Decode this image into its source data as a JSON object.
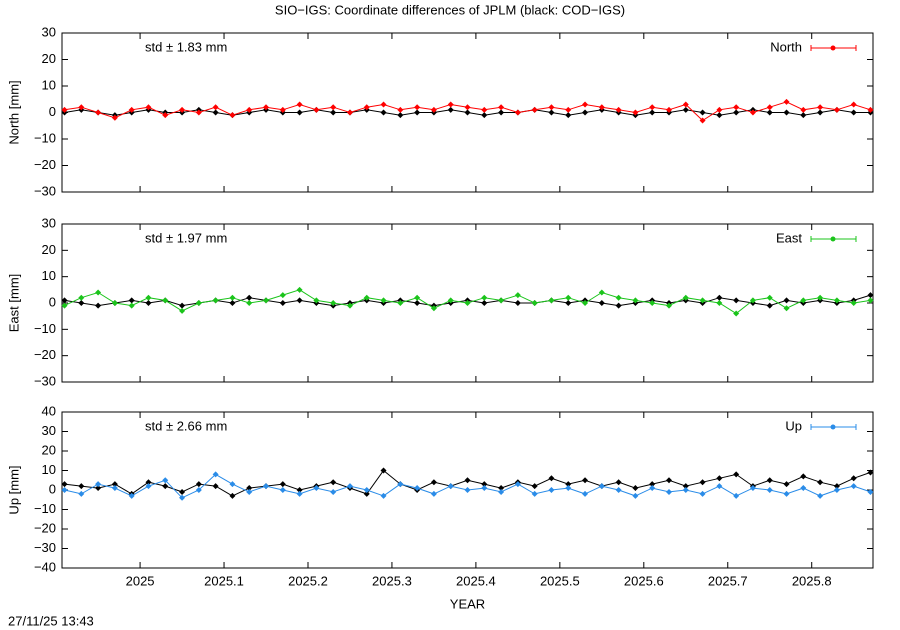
{
  "title": "SIO−IGS: Coordinate differences of JPLM (black: COD−IGS)",
  "timestamp": "27/11/25 13:43",
  "chart_data": [
    {
      "type": "line",
      "ylabel": "North [mm]",
      "annotation": "std ± 1.83 mm",
      "xlim": [
        2024.907,
        2025.873
      ],
      "xticks": [
        2025,
        2025.1,
        2025.2,
        2025.3,
        2025.4,
        2025.5,
        2025.6,
        2025.7,
        2025.8
      ],
      "ylim": [
        -30,
        30
      ],
      "yticks": [
        {
          "value": -30,
          "label": "−30"
        },
        {
          "value": -20,
          "label": "−20"
        },
        {
          "value": -10,
          "label": "−10"
        },
        0,
        10,
        20,
        30
      ],
      "x": [
        2024.91,
        2024.93,
        2024.95,
        2024.97,
        2024.99,
        2025.01,
        2025.03,
        2025.05,
        2025.07,
        2025.09,
        2025.11,
        2025.13,
        2025.15,
        2025.17,
        2025.19,
        2025.21,
        2025.23,
        2025.25,
        2025.27,
        2025.29,
        2025.31,
        2025.33,
        2025.35,
        2025.37,
        2025.39,
        2025.41,
        2025.43,
        2025.45,
        2025.47,
        2025.49,
        2025.51,
        2025.53,
        2025.55,
        2025.57,
        2025.59,
        2025.61,
        2025.63,
        2025.65,
        2025.67,
        2025.69,
        2025.71,
        2025.73,
        2025.75,
        2025.77,
        2025.79,
        2025.81,
        2025.83,
        2025.85,
        2025.87
      ],
      "series": [
        {
          "color": "#000000",
          "values": [
            0,
            1,
            0,
            -1,
            0,
            1,
            0,
            0,
            1,
            0,
            -1,
            0,
            1,
            0,
            0,
            1,
            0,
            0,
            1,
            0,
            -1,
            0,
            0,
            1,
            0,
            -1,
            0,
            0,
            1,
            0,
            -1,
            0,
            1,
            0,
            -1,
            0,
            0,
            1,
            0,
            -1,
            0,
            1,
            0,
            0,
            -1,
            0,
            1,
            0,
            0
          ]
        },
        {
          "name": "North",
          "color": "#ff0000",
          "values": [
            1,
            2,
            0,
            -2,
            1,
            2,
            -1,
            1,
            0,
            2,
            -1,
            1,
            2,
            1,
            3,
            1,
            2,
            0,
            2,
            3,
            1,
            2,
            1,
            3,
            2,
            1,
            2,
            0,
            1,
            2,
            1,
            3,
            2,
            1,
            0,
            2,
            1,
            3,
            -3,
            1,
            2,
            0,
            2,
            4,
            1,
            2,
            1,
            3,
            1
          ]
        }
      ]
    },
    {
      "type": "line",
      "ylabel": "East [mm]",
      "annotation": "std ± 1.97 mm",
      "xlim": [
        2024.907,
        2025.873
      ],
      "xticks": [
        2025,
        2025.1,
        2025.2,
        2025.3,
        2025.4,
        2025.5,
        2025.6,
        2025.7,
        2025.8
      ],
      "ylim": [
        -30,
        30
      ],
      "yticks": [
        {
          "value": -30,
          "label": "−30"
        },
        {
          "value": -20,
          "label": "−20"
        },
        {
          "value": -10,
          "label": "−10"
        },
        0,
        10,
        20,
        30
      ],
      "x": [
        2024.91,
        2024.93,
        2024.95,
        2024.97,
        2024.99,
        2025.01,
        2025.03,
        2025.05,
        2025.07,
        2025.09,
        2025.11,
        2025.13,
        2025.15,
        2025.17,
        2025.19,
        2025.21,
        2025.23,
        2025.25,
        2025.27,
        2025.29,
        2025.31,
        2025.33,
        2025.35,
        2025.37,
        2025.39,
        2025.41,
        2025.43,
        2025.45,
        2025.47,
        2025.49,
        2025.51,
        2025.53,
        2025.55,
        2025.57,
        2025.59,
        2025.61,
        2025.63,
        2025.65,
        2025.67,
        2025.69,
        2025.71,
        2025.73,
        2025.75,
        2025.77,
        2025.79,
        2025.81,
        2025.83,
        2025.85,
        2025.87
      ],
      "series": [
        {
          "color": "#000000",
          "values": [
            1,
            0,
            -1,
            0,
            1,
            0,
            1,
            -1,
            0,
            1,
            0,
            2,
            1,
            0,
            1,
            0,
            -1,
            0,
            1,
            0,
            1,
            0,
            -1,
            0,
            1,
            0,
            1,
            0,
            0,
            1,
            0,
            1,
            0,
            -1,
            0,
            1,
            0,
            1,
            0,
            2,
            1,
            0,
            -1,
            1,
            0,
            1,
            0,
            1,
            3
          ]
        },
        {
          "name": "East",
          "color": "#1bc41b",
          "values": [
            -1,
            2,
            4,
            0,
            -1,
            2,
            1,
            -3,
            0,
            1,
            2,
            0,
            1,
            3,
            5,
            1,
            0,
            -1,
            2,
            1,
            0,
            2,
            -2,
            1,
            0,
            2,
            1,
            3,
            0,
            1,
            2,
            0,
            4,
            2,
            1,
            0,
            -1,
            2,
            1,
            0,
            -4,
            1,
            2,
            -2,
            1,
            2,
            1,
            0,
            1
          ]
        }
      ]
    },
    {
      "type": "line",
      "ylabel": "Up [mm]",
      "annotation": "std ± 2.66 mm",
      "xlabel": "YEAR",
      "xlim": [
        2024.907,
        2025.873
      ],
      "xticks": [
        2025,
        2025.1,
        2025.2,
        2025.3,
        2025.4,
        2025.5,
        2025.6,
        2025.7,
        2025.8
      ],
      "ylim": [
        -40,
        40
      ],
      "yticks": [
        {
          "value": -40,
          "label": "−40"
        },
        {
          "value": -30,
          "label": "−30"
        },
        {
          "value": -20,
          "label": "−20"
        },
        {
          "value": -10,
          "label": "−10"
        },
        0,
        10,
        20,
        30,
        40
      ],
      "x": [
        2024.91,
        2024.93,
        2024.95,
        2024.97,
        2024.99,
        2025.01,
        2025.03,
        2025.05,
        2025.07,
        2025.09,
        2025.11,
        2025.13,
        2025.15,
        2025.17,
        2025.19,
        2025.21,
        2025.23,
        2025.25,
        2025.27,
        2025.29,
        2025.31,
        2025.33,
        2025.35,
        2025.37,
        2025.39,
        2025.41,
        2025.43,
        2025.45,
        2025.47,
        2025.49,
        2025.51,
        2025.53,
        2025.55,
        2025.57,
        2025.59,
        2025.61,
        2025.63,
        2025.65,
        2025.67,
        2025.69,
        2025.71,
        2025.73,
        2025.75,
        2025.77,
        2025.79,
        2025.81,
        2025.83,
        2025.85,
        2025.87
      ],
      "series": [
        {
          "color": "#000000",
          "values": [
            3,
            2,
            1,
            3,
            -2,
            4,
            2,
            -1,
            3,
            2,
            -3,
            1,
            2,
            3,
            0,
            2,
            4,
            1,
            -2,
            10,
            3,
            0,
            4,
            2,
            5,
            3,
            1,
            4,
            2,
            6,
            3,
            5,
            2,
            4,
            1,
            3,
            5,
            2,
            4,
            6,
            8,
            2,
            5,
            3,
            7,
            4,
            2,
            6,
            9
          ]
        },
        {
          "name": "Up",
          "color": "#2a8ce8",
          "values": [
            0,
            -2,
            3,
            1,
            -3,
            2,
            5,
            -4,
            0,
            8,
            3,
            -1,
            2,
            0,
            -2,
            1,
            -1,
            2,
            0,
            -3,
            3,
            1,
            -2,
            2,
            0,
            1,
            -1,
            3,
            -2,
            0,
            1,
            -2,
            2,
            0,
            -3,
            1,
            -1,
            0,
            -2,
            2,
            -3,
            1,
            0,
            -2,
            1,
            -3,
            0,
            2,
            -1
          ]
        }
      ]
    }
  ]
}
